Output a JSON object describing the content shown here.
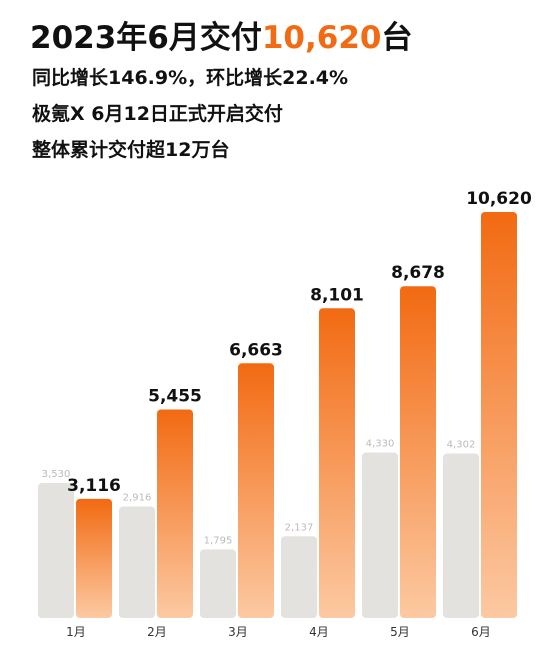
{
  "chart_data": {
    "type": "bar",
    "title": [
      "2023年6月交付",
      "10,620",
      "台"
    ],
    "subtitles": [
      "同比增长146.9%，环比增长22.4%",
      "极氪X 6月12日正式开启交付",
      "整体累计交付超12万台"
    ],
    "categories": [
      "1月",
      "2月",
      "3月",
      "4月",
      "5月",
      "6月"
    ],
    "series": [
      {
        "color": "#e4e2de",
        "values": [
          3530,
          2916,
          1795,
          2137,
          4330,
          4302
        ],
        "value_labels": [
          "3,530",
          "2,916",
          "1,795",
          "2,137",
          "4,330",
          "4,302"
        ]
      },
      {
        "color": "#f26a12",
        "values": [
          3116,
          5455,
          6663,
          8101,
          8678,
          10620
        ],
        "value_labels": [
          "3,116",
          "5,455",
          "6,663",
          "8,101",
          "8,678",
          "10,620"
        ]
      }
    ]
  }
}
